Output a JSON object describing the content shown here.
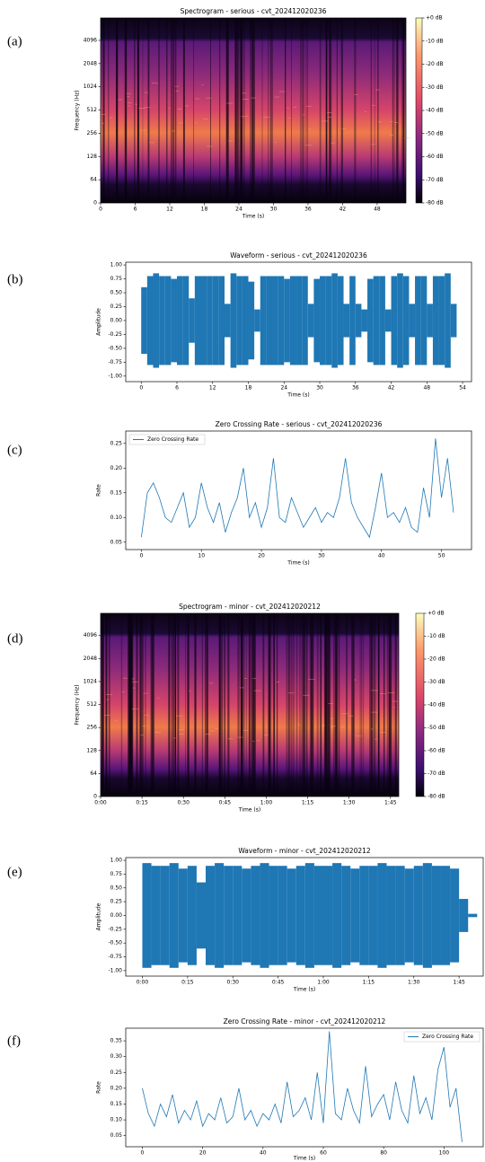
{
  "panels": [
    {
      "label": "(a)",
      "chart_data": {
        "type": "spectrogram",
        "title": "Spectrogram - serious - cvt_202412020236",
        "xlabel": "Time (s)",
        "ylabel": "Frequency (Hz)",
        "xlim": [
          0,
          53
        ],
        "xticks": [
          0,
          6,
          12,
          18,
          24,
          30,
          36,
          42,
          48
        ],
        "ylim": [
          0,
          8000
        ],
        "yscale": "symlog",
        "yticks": [
          0,
          64,
          128,
          256,
          512,
          1024,
          2048,
          4096
        ],
        "clim": [
          -80,
          0
        ],
        "cticks": [
          {
            "value": 0,
            "label": "+0 dB"
          },
          {
            "value": -10,
            "label": "-10 dB"
          },
          {
            "value": -20,
            "label": "-20 dB"
          },
          {
            "value": -30,
            "label": "-30 dB"
          },
          {
            "value": -40,
            "label": "-40 dB"
          },
          {
            "value": -50,
            "label": "-50 dB"
          },
          {
            "value": -60,
            "label": "-60 dB"
          },
          {
            "value": -70,
            "label": "-70 dB"
          },
          {
            "value": -80,
            "label": "-80 dB"
          }
        ]
      }
    },
    {
      "label": "(b)",
      "chart_data": {
        "type": "waveform",
        "title": "Waveform - serious - cvt_202412020236",
        "xlabel": "Time (s)",
        "ylabel": "Amplitude",
        "xlim": [
          -2.6,
          55.5
        ],
        "xticks": [
          0,
          6,
          12,
          18,
          24,
          30,
          36,
          42,
          48,
          54
        ],
        "ylim": [
          -1.1,
          1.05
        ],
        "yticks": [
          {
            "value": -1,
            "label": "-1.00"
          },
          -0.75,
          {
            "value": -0.5,
            "label": "-0.50"
          },
          -0.25,
          {
            "value": 0,
            "label": "0.00"
          },
          0.25,
          {
            "value": 0.5,
            "label": "0.50"
          },
          0.75,
          {
            "value": 1,
            "label": "1.00"
          }
        ],
        "color": "#1f77b4",
        "x": [
          0,
          1,
          2,
          3,
          4,
          5,
          6,
          7,
          8,
          9,
          10,
          11,
          12,
          13,
          14,
          15,
          16,
          17,
          18,
          19,
          20,
          21,
          22,
          23,
          24,
          25,
          26,
          27,
          28,
          29,
          30,
          31,
          32,
          33,
          34,
          35,
          36,
          37,
          38,
          39,
          40,
          41,
          42,
          43,
          44,
          45,
          46,
          47,
          48,
          49,
          50,
          51,
          52
        ],
        "values": [
          0.6,
          0.8,
          0.85,
          0.8,
          0.8,
          0.75,
          0.8,
          0.8,
          0.4,
          0.8,
          0.8,
          0.8,
          0.8,
          0.8,
          0.3,
          0.85,
          0.8,
          0.8,
          0.7,
          0.2,
          0.8,
          0.8,
          0.8,
          0.8,
          0.75,
          0.8,
          0.8,
          0.8,
          0.3,
          0.75,
          0.8,
          0.8,
          0.85,
          0.8,
          0.3,
          0.8,
          0.3,
          0.2,
          0.75,
          0.8,
          0.8,
          0.2,
          0.8,
          0.85,
          0.8,
          0.3,
          0.8,
          0.8,
          0.3,
          0.8,
          0.8,
          0.85,
          0.3
        ]
      }
    },
    {
      "label": "(c)",
      "chart_data": {
        "type": "line",
        "title": "Zero Crossing Rate - serious - cvt_202412020236",
        "xlabel": "Time (s)",
        "ylabel": "Rate",
        "xlim": [
          -2.6,
          55
        ],
        "xticks": [
          0,
          10,
          20,
          30,
          40,
          50
        ],
        "ylim": [
          0.035,
          0.275
        ],
        "yticks": [
          0.05,
          {
            "value": 0.1,
            "label": "0.10"
          },
          0.15,
          {
            "value": 0.2,
            "label": "0.20"
          },
          0.25
        ],
        "legend": "upper left",
        "x": [
          0,
          1,
          2,
          3,
          4,
          5,
          6,
          7,
          8,
          9,
          10,
          11,
          12,
          13,
          14,
          15,
          16,
          17,
          18,
          19,
          20,
          21,
          22,
          23,
          24,
          25,
          26,
          27,
          28,
          29,
          30,
          31,
          32,
          33,
          34,
          35,
          36,
          37,
          38,
          39,
          40,
          41,
          42,
          43,
          44,
          45,
          46,
          47,
          48,
          49,
          50,
          51,
          52
        ],
        "series": [
          {
            "name": "Zero Crossing Rate",
            "color": "#1f77b4",
            "values": [
              0.06,
              0.15,
              0.17,
              0.14,
              0.1,
              0.09,
              0.12,
              0.15,
              0.08,
              0.1,
              0.17,
              0.12,
              0.09,
              0.13,
              0.07,
              0.11,
              0.14,
              0.2,
              0.1,
              0.13,
              0.08,
              0.12,
              0.22,
              0.1,
              0.09,
              0.14,
              0.11,
              0.08,
              0.1,
              0.12,
              0.09,
              0.11,
              0.1,
              0.14,
              0.22,
              0.13,
              0.1,
              0.08,
              0.06,
              0.12,
              0.19,
              0.1,
              0.11,
              0.09,
              0.12,
              0.08,
              0.07,
              0.16,
              0.1,
              0.26,
              0.14,
              0.22,
              0.11
            ]
          }
        ]
      }
    },
    {
      "label": "(d)",
      "chart_data": {
        "type": "spectrogram",
        "title": "Spectrogram - minor - cvt_202412020212",
        "xlabel": "Time (s)",
        "ylabel": "Frequency (Hz)",
        "xlim": [
          0,
          108
        ],
        "xticks": [
          {
            "value": 0,
            "label": "0:00"
          },
          {
            "value": 15,
            "label": "0:15"
          },
          {
            "value": 30,
            "label": "0:30"
          },
          {
            "value": 45,
            "label": "0:45"
          },
          {
            "value": 60,
            "label": "1:00"
          },
          {
            "value": 75,
            "label": "1:15"
          },
          {
            "value": 90,
            "label": "1:30"
          },
          {
            "value": 105,
            "label": "1:45"
          }
        ],
        "ylim": [
          0,
          8000
        ],
        "yscale": "symlog",
        "yticks": [
          0,
          64,
          128,
          256,
          512,
          1024,
          2048,
          4096
        ],
        "clim": [
          -80,
          0
        ],
        "cticks": [
          {
            "value": 0,
            "label": "+0 dB"
          },
          {
            "value": -10,
            "label": "-10 dB"
          },
          {
            "value": -20,
            "label": "-20 dB"
          },
          {
            "value": -30,
            "label": "-30 dB"
          },
          {
            "value": -40,
            "label": "-40 dB"
          },
          {
            "value": -50,
            "label": "-50 dB"
          },
          {
            "value": -60,
            "label": "-60 dB"
          },
          {
            "value": -70,
            "label": "-70 dB"
          },
          {
            "value": -80,
            "label": "-80 dB"
          }
        ]
      }
    },
    {
      "label": "(e)",
      "chart_data": {
        "type": "waveform",
        "title": "Waveform - minor - cvt_202412020212",
        "xlabel": "Time (s)",
        "ylabel": "Amplitude",
        "xlim": [
          -5.5,
          113
        ],
        "xticks": [
          {
            "value": 0,
            "label": "0:00"
          },
          {
            "value": 15,
            "label": "0:15"
          },
          {
            "value": 30,
            "label": "0:30"
          },
          {
            "value": 45,
            "label": "0:45"
          },
          {
            "value": 60,
            "label": "1:00"
          },
          {
            "value": 75,
            "label": "1:15"
          },
          {
            "value": 90,
            "label": "1:30"
          },
          {
            "value": 105,
            "label": "1:45"
          }
        ],
        "ylim": [
          -1.1,
          1.05
        ],
        "yticks": [
          {
            "value": -1,
            "label": "-1.00"
          },
          -0.75,
          {
            "value": -0.5,
            "label": "-0.50"
          },
          -0.25,
          {
            "value": 0,
            "label": "0.00"
          },
          0.25,
          {
            "value": 0.5,
            "label": "0.50"
          },
          0.75,
          {
            "value": 1,
            "label": "1.00"
          }
        ],
        "color": "#1f77b4",
        "x": [
          0,
          3,
          6,
          9,
          12,
          15,
          18,
          21,
          24,
          27,
          30,
          33,
          36,
          39,
          42,
          45,
          48,
          51,
          54,
          57,
          60,
          63,
          66,
          69,
          72,
          75,
          78,
          81,
          84,
          87,
          90,
          93,
          96,
          99,
          102,
          105,
          108
        ],
        "values": [
          0.95,
          0.9,
          0.9,
          0.95,
          0.85,
          0.9,
          0.6,
          0.9,
          0.95,
          0.9,
          0.9,
          0.85,
          0.9,
          0.95,
          0.9,
          0.9,
          0.85,
          0.9,
          0.95,
          0.9,
          0.9,
          0.95,
          0.9,
          0.85,
          0.9,
          0.9,
          0.95,
          0.9,
          0.9,
          0.85,
          0.9,
          0.95,
          0.9,
          0.9,
          0.85,
          0.3,
          0.03
        ]
      }
    },
    {
      "label": "(f)",
      "chart_data": {
        "type": "line",
        "title": "Zero Crossing Rate - minor - cvt_202412020212",
        "xlabel": "Time (s)",
        "ylabel": "Rate",
        "xlim": [
          -5.5,
          113
        ],
        "xticks": [
          0,
          20,
          40,
          60,
          80,
          100
        ],
        "ylim": [
          0.015,
          0.39
        ],
        "yticks": [
          0.05,
          {
            "value": 0.1,
            "label": "0.10"
          },
          0.15,
          {
            "value": 0.2,
            "label": "0.20"
          },
          0.25,
          {
            "value": 0.3,
            "label": "0.30"
          },
          0.35
        ],
        "legend": "upper right",
        "x": [
          0,
          2,
          4,
          6,
          8,
          10,
          12,
          14,
          16,
          18,
          20,
          22,
          24,
          26,
          28,
          30,
          32,
          34,
          36,
          38,
          40,
          42,
          44,
          46,
          48,
          50,
          52,
          54,
          56,
          58,
          60,
          62,
          64,
          66,
          68,
          70,
          72,
          74,
          76,
          78,
          80,
          82,
          84,
          86,
          88,
          90,
          92,
          94,
          96,
          98,
          100,
          102,
          104,
          106
        ],
        "series": [
          {
            "name": "Zero Crossing Rate",
            "color": "#1f77b4",
            "values": [
              0.2,
              0.12,
              0.08,
              0.15,
              0.11,
              0.18,
              0.09,
              0.13,
              0.1,
              0.16,
              0.08,
              0.12,
              0.1,
              0.17,
              0.09,
              0.11,
              0.2,
              0.1,
              0.13,
              0.08,
              0.12,
              0.1,
              0.15,
              0.09,
              0.22,
              0.11,
              0.13,
              0.17,
              0.1,
              0.25,
              0.09,
              0.38,
              0.12,
              0.1,
              0.2,
              0.13,
              0.09,
              0.27,
              0.11,
              0.15,
              0.18,
              0.1,
              0.22,
              0.13,
              0.09,
              0.24,
              0.12,
              0.17,
              0.1,
              0.26,
              0.33,
              0.14,
              0.2,
              0.03
            ]
          }
        ]
      }
    }
  ]
}
